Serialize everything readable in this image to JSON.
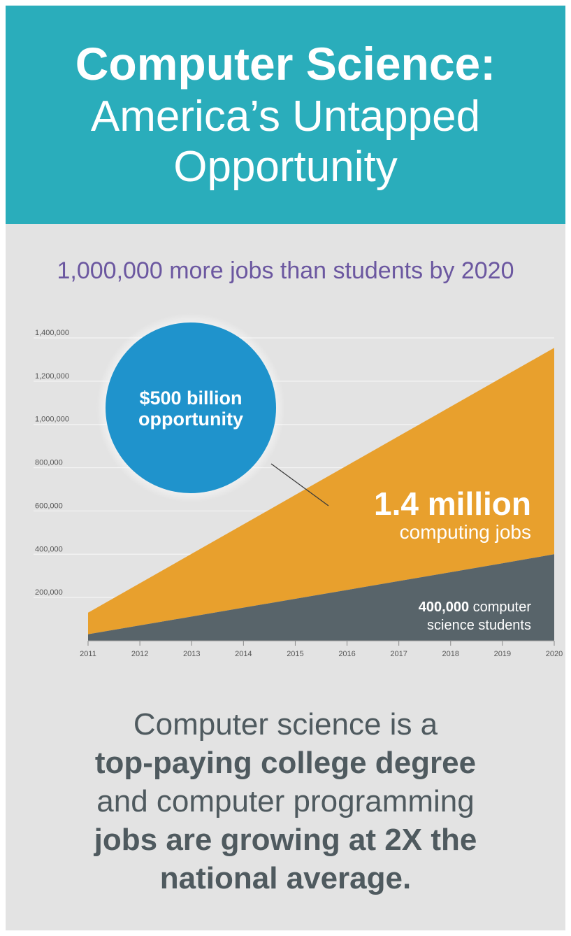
{
  "header": {
    "title_bold": "Computer Science:",
    "title_line2": "America’s Untapped",
    "title_line3": "Opportunity"
  },
  "subhead": "1,000,000 more jobs than students by 2020",
  "colors": {
    "header_bg": "#2aadbb",
    "jobs_area": "#e8a02d",
    "students_area": "#58646a",
    "bubble": "#1f93cc",
    "subhead": "#6b57a0"
  },
  "chart_data": {
    "type": "area",
    "x": [
      "2011",
      "2012",
      "2013",
      "2014",
      "2015",
      "2016",
      "2017",
      "2018",
      "2019",
      "2020"
    ],
    "series": [
      {
        "values": [
          130000,
          266000,
          402000,
          538000,
          674000,
          810000,
          946000,
          1082000,
          1218000,
          1354000
        ]
      },
      {
        "values": [
          30000,
          71000,
          112000,
          153000,
          194000,
          235000,
          276000,
          317000,
          358000,
          400000
        ]
      }
    ],
    "ylim": [
      0,
      1400000
    ],
    "yticks": [
      "200,000",
      "400,000",
      "600,000",
      "800,000",
      "1,000,000",
      "1,200,000",
      "1,400,000"
    ],
    "grid": true,
    "annotations": {
      "bubble_line1": "$500 billion",
      "bubble_line2": "opportunity",
      "jobs_big": "1.4 million",
      "jobs_sub": "computing jobs",
      "students_bold": "400,000",
      "students_rest": " computer",
      "students_line2": "science students"
    }
  },
  "footer": {
    "line1": "Computer science is a",
    "line2": "top-paying college degree",
    "line3": "and computer programming",
    "line4": "jobs are growing at 2X the",
    "line5": "national average."
  }
}
